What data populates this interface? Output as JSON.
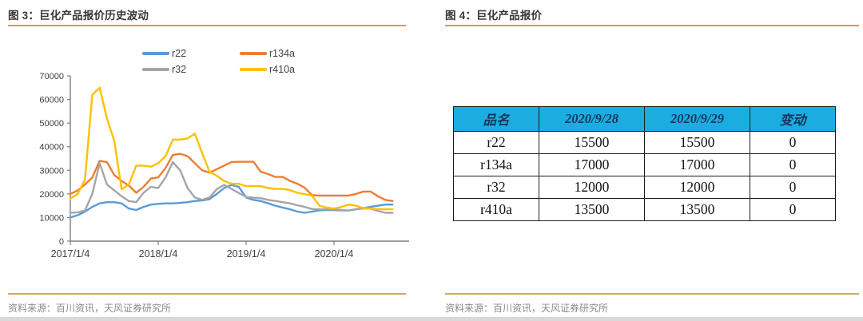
{
  "left_panel": {
    "title": "图 3：巨化产品报价历史波动",
    "source": "资料来源：百川资讯，天风证券研究所"
  },
  "right_panel": {
    "title": "图 4：巨化产品报价",
    "source": "资料来源：百川资讯，天风证券研究所",
    "table": {
      "headers": [
        "品名",
        "2020/9/28",
        "2020/9/29",
        "变动"
      ],
      "rows": [
        [
          "r22",
          "15500",
          "15500",
          "0"
        ],
        [
          "r134a",
          "17000",
          "17000",
          "0"
        ],
        [
          "r32",
          "12000",
          "12000",
          "0"
        ],
        [
          "r410a",
          "13500",
          "13500",
          "0"
        ]
      ],
      "header_bg": "#1badе0",
      "header_bg_hex": "#1badE0",
      "header_text_color": "#17365d"
    }
  },
  "chart_data": {
    "type": "line",
    "title": "巨化产品报价历史波动",
    "x_unit": "monthly, 2017/1 through 2020/9",
    "x_tick_labels": [
      "2017/1/4",
      "2018/1/4",
      "2019/1/4",
      "2020/1/4"
    ],
    "x_tick_months": [
      0,
      12,
      24,
      36
    ],
    "y_ticks": [
      0,
      10000,
      20000,
      30000,
      40000,
      50000,
      60000,
      70000
    ],
    "ylim": [
      0,
      70000
    ],
    "grid": false,
    "legend_position": "top",
    "legend_order": [
      "r22",
      "r134a",
      "r32",
      "r410a"
    ],
    "series": [
      {
        "name": "r22",
        "color": "#5B9BD5",
        "values": [
          10000,
          11000,
          12500,
          14500,
          16000,
          16500,
          16500,
          16000,
          13800,
          13200,
          14500,
          15500,
          15800,
          16000,
          16000,
          16200,
          16500,
          17000,
          17200,
          17800,
          20000,
          22500,
          23800,
          23000,
          18500,
          17500,
          17000,
          16000,
          15000,
          14200,
          13500,
          12500,
          12000,
          12500,
          13000,
          13200,
          13200,
          13000,
          13000,
          13500,
          14000,
          14500,
          15000,
          15500,
          15500
        ]
      },
      {
        "name": "r134a",
        "color": "#ED7D31",
        "values": [
          20000,
          21500,
          24000,
          27000,
          34000,
          33500,
          28000,
          25500,
          23500,
          20500,
          23000,
          26500,
          27000,
          31000,
          36500,
          37000,
          36000,
          33000,
          30000,
          29000,
          30500,
          32000,
          33500,
          33600,
          33600,
          33600,
          29400,
          28400,
          27200,
          27200,
          25500,
          24300,
          22600,
          19500,
          19300,
          19300,
          19300,
          19300,
          19300,
          20000,
          21000,
          21000,
          19000,
          17500,
          17000
        ]
      },
      {
        "name": "r32",
        "color": "#A5A5A5",
        "values": [
          12000,
          12200,
          13000,
          20000,
          33000,
          24000,
          21500,
          19000,
          17000,
          16500,
          20500,
          23000,
          22500,
          27000,
          33500,
          30000,
          22500,
          18500,
          17500,
          18500,
          22000,
          23800,
          22100,
          20400,
          18700,
          18400,
          18200,
          17500,
          17000,
          16500,
          16000,
          15200,
          14500,
          13600,
          13500,
          13500,
          13500,
          13200,
          13000,
          13500,
          13800,
          13800,
          12800,
          12000,
          12000
        ]
      },
      {
        "name": "r410a",
        "color": "#FFC000",
        "values": [
          18000,
          20000,
          26000,
          62000,
          65000,
          52000,
          42500,
          22000,
          24000,
          32000,
          32000,
          31500,
          33000,
          36000,
          43000,
          43000,
          43500,
          45500,
          37300,
          29400,
          27700,
          25500,
          24300,
          24300,
          23300,
          23300,
          23300,
          22500,
          22100,
          22100,
          21600,
          20500,
          19900,
          19300,
          15000,
          14200,
          13800,
          14500,
          15500,
          15000,
          14000,
          13800,
          13500,
          13500,
          13500
        ]
      }
    ]
  },
  "style": {
    "title_rule_color": "#e8943c",
    "source_rule_color": "#c9a86a",
    "axis_color": "#7f7f7f",
    "axis_text_color": "#404040",
    "table_header_bg": "#1badE0",
    "table_header_text": "#17365d",
    "bottom_bar_color": "#d9d9d9"
  }
}
